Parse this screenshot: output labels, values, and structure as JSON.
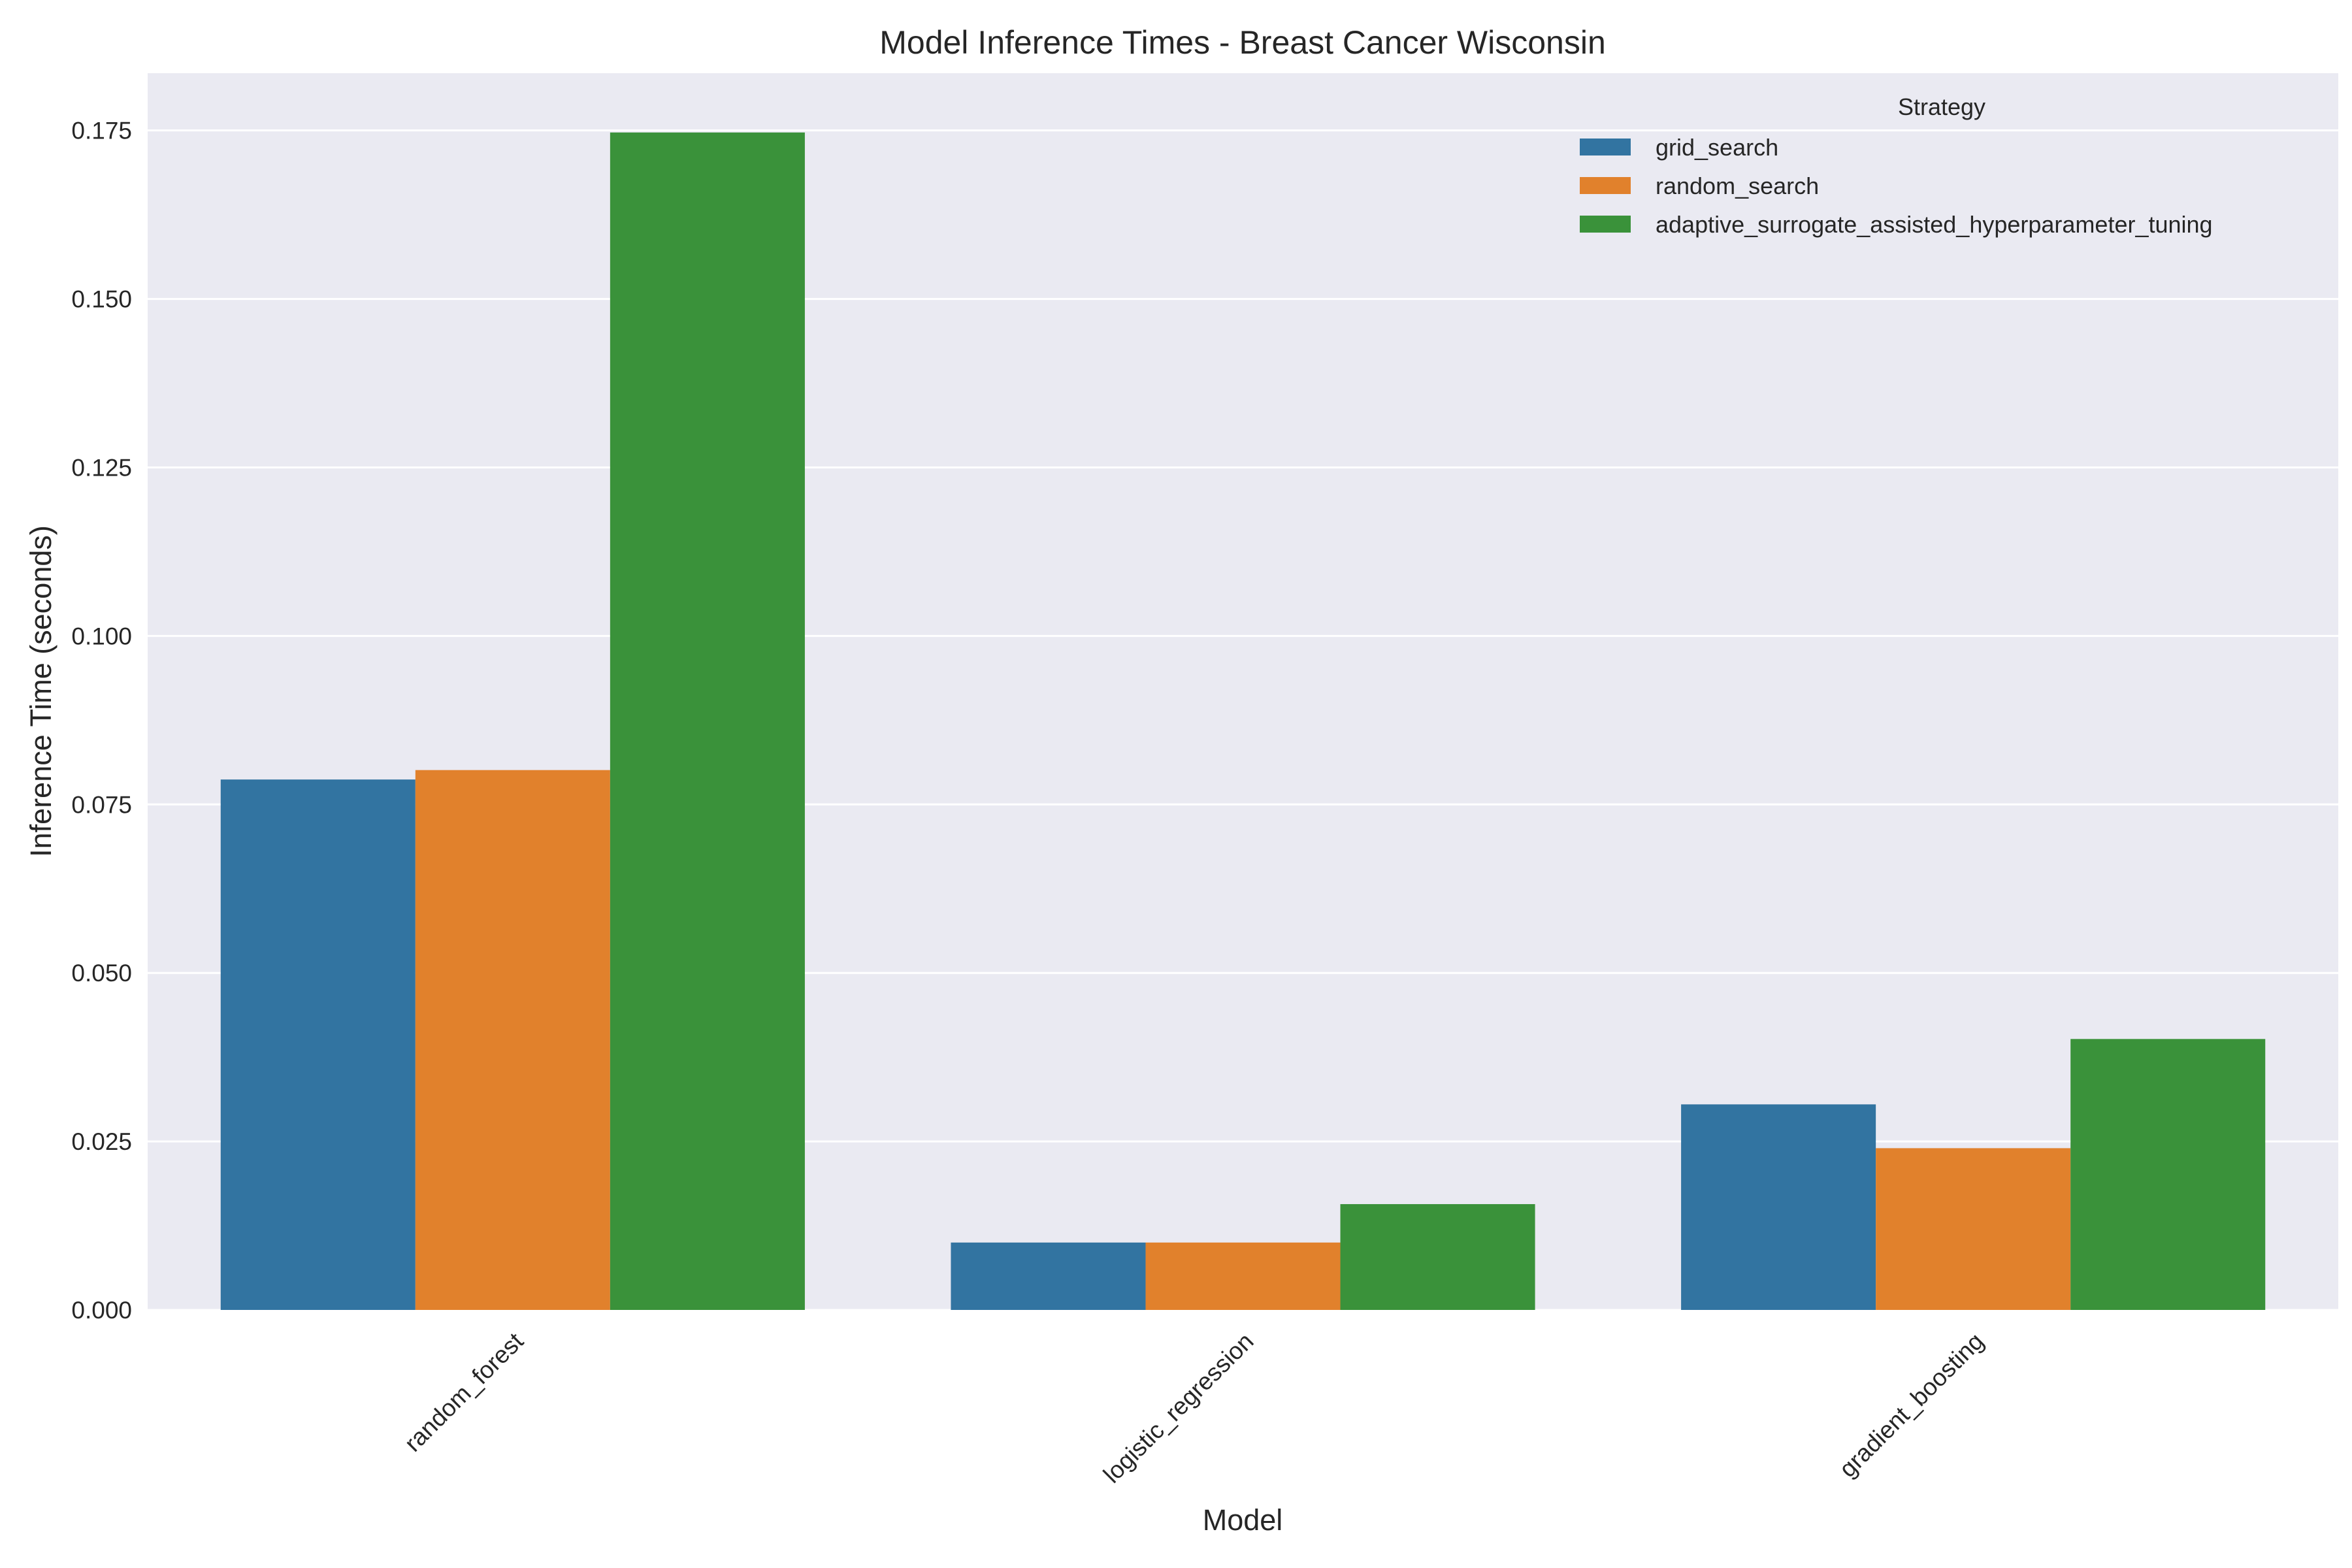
{
  "chart_data": {
    "type": "bar",
    "title": "Model Inference Times - Breast Cancer Wisconsin",
    "xlabel": "Model",
    "ylabel": "Inference Time (seconds)",
    "categories": [
      "random_forest",
      "logistic_regression",
      "gradient_boosting"
    ],
    "series": [
      {
        "name": "grid_search",
        "color": "#3274a1",
        "values": [
          0.0787,
          0.01,
          0.0305
        ]
      },
      {
        "name": "random_search",
        "color": "#e1812c",
        "values": [
          0.0801,
          0.01,
          0.024
        ]
      },
      {
        "name": "adaptive_surrogate_assisted_hyperparameter_tuning",
        "color": "#3a923a",
        "values": [
          0.1747,
          0.0157,
          0.0402
        ]
      }
    ],
    "ylim": [
      0,
      0.1835
    ],
    "yticks": [
      "0.000",
      "0.025",
      "0.050",
      "0.075",
      "0.100",
      "0.125",
      "0.150",
      "0.175"
    ],
    "grid": true,
    "background_color": "#eaeaf2",
    "legend": {
      "title": "Strategy",
      "placement": "top-right"
    }
  }
}
